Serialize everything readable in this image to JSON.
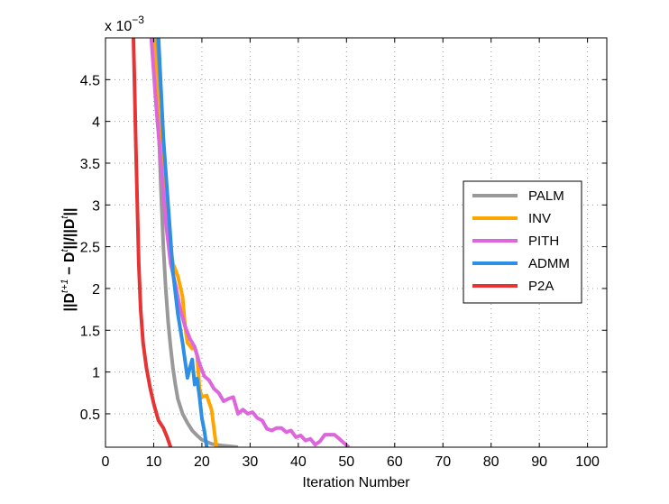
{
  "chart_data": {
    "type": "line",
    "xlabel": "Iteration Number",
    "ylabel_parts": [
      "||D",
      "t+1",
      " − D",
      "t",
      "||/||D",
      "t",
      "||"
    ],
    "exponent_label": "x 10",
    "exponent_power": "−3",
    "xlim": [
      0,
      104
    ],
    "ylim": [
      0.1,
      5.0
    ],
    "xticks": [
      "0",
      "10",
      "20",
      "30",
      "40",
      "50",
      "60",
      "70",
      "80",
      "90",
      "100"
    ],
    "xtick_values": [
      0,
      10,
      20,
      30,
      40,
      50,
      60,
      70,
      80,
      90,
      100
    ],
    "yticks": [
      "0.5",
      "1",
      "1.5",
      "2",
      "2.5",
      "3",
      "3.5",
      "4",
      "4.5"
    ],
    "ytick_values": [
      0.5,
      1,
      1.5,
      2,
      2.5,
      3,
      3.5,
      4,
      4.5
    ],
    "grid": true,
    "legend_position": "right",
    "series": [
      {
        "name": "PALM",
        "color": "#999999",
        "points": [
          [
            10.5,
            5.0
          ],
          [
            11,
            4.0
          ],
          [
            11.5,
            3.2
          ],
          [
            12,
            2.5
          ],
          [
            12.5,
            2.0
          ],
          [
            13,
            1.6
          ],
          [
            13.5,
            1.3
          ],
          [
            14,
            1.05
          ],
          [
            14.5,
            0.85
          ],
          [
            15,
            0.68
          ],
          [
            16,
            0.5
          ],
          [
            17,
            0.39
          ],
          [
            18,
            0.3
          ],
          [
            19,
            0.24
          ],
          [
            20,
            0.19
          ],
          [
            22,
            0.14
          ],
          [
            24,
            0.12
          ],
          [
            26,
            0.11
          ],
          [
            27.5,
            0.1
          ]
        ]
      },
      {
        "name": "INV",
        "color": "#FFA500",
        "points": [
          [
            10,
            5.0
          ],
          [
            11,
            4.1
          ],
          [
            12,
            3.4
          ],
          [
            13,
            2.7
          ],
          [
            14,
            2.3
          ],
          [
            15,
            2.15
          ],
          [
            16,
            1.9
          ],
          [
            16.5,
            1.55
          ],
          [
            17,
            1.35
          ],
          [
            18,
            1.28
          ],
          [
            18.5,
            1.3
          ],
          [
            19,
            1.2
          ],
          [
            19.5,
            0.8
          ],
          [
            20,
            0.7
          ],
          [
            21,
            0.72
          ],
          [
            22,
            0.55
          ],
          [
            23,
            0.1
          ]
        ]
      },
      {
        "name": "PITH",
        "color": "#DD66DD",
        "points": [
          [
            9.5,
            5.0
          ],
          [
            10.5,
            4.2
          ],
          [
            11.5,
            3.5
          ],
          [
            12.5,
            2.8
          ],
          [
            13.5,
            2.3
          ],
          [
            14.5,
            2.05
          ],
          [
            15.5,
            1.75
          ],
          [
            16.5,
            1.55
          ],
          [
            17.5,
            1.4
          ],
          [
            18.5,
            1.3
          ],
          [
            19.5,
            1.1
          ],
          [
            20.5,
            0.95
          ],
          [
            21.5,
            0.9
          ],
          [
            22.5,
            0.8
          ],
          [
            23.5,
            0.75
          ],
          [
            24.5,
            0.65
          ],
          [
            25.5,
            0.68
          ],
          [
            26.5,
            0.7
          ],
          [
            27.5,
            0.5
          ],
          [
            28.5,
            0.55
          ],
          [
            29.5,
            0.5
          ],
          [
            30.5,
            0.52
          ],
          [
            31.5,
            0.45
          ],
          [
            32.5,
            0.42
          ],
          [
            33.5,
            0.32
          ],
          [
            34.5,
            0.3
          ],
          [
            35.5,
            0.33
          ],
          [
            36.5,
            0.33
          ],
          [
            37.5,
            0.28
          ],
          [
            38.5,
            0.3
          ],
          [
            39.5,
            0.22
          ],
          [
            40.5,
            0.24
          ],
          [
            41.5,
            0.18
          ],
          [
            42.5,
            0.2
          ],
          [
            43.5,
            0.13
          ],
          [
            44.5,
            0.17
          ],
          [
            45.5,
            0.25
          ],
          [
            46.5,
            0.25
          ],
          [
            47.5,
            0.25
          ],
          [
            48.5,
            0.2
          ],
          [
            49.5,
            0.15
          ],
          [
            50.5,
            0.1
          ]
        ]
      },
      {
        "name": "ADMM",
        "color": "#2E8FE6",
        "points": [
          [
            11,
            5.0
          ],
          [
            12,
            3.8
          ],
          [
            13,
            3.0
          ],
          [
            14,
            2.2
          ],
          [
            15,
            1.7
          ],
          [
            16,
            1.35
          ],
          [
            17,
            0.93
          ],
          [
            17.5,
            1.05
          ],
          [
            18,
            1.15
          ],
          [
            18.5,
            0.85
          ],
          [
            19,
            0.92
          ],
          [
            19.5,
            0.7
          ],
          [
            20,
            0.45
          ],
          [
            20.5,
            0.3
          ],
          [
            21,
            0.1
          ]
        ]
      },
      {
        "name": "P2A",
        "color": "#E63333",
        "points": [
          [
            5.8,
            5.0
          ],
          [
            6,
            4.5
          ],
          [
            6.3,
            3.7
          ],
          [
            6.6,
            3.0
          ],
          [
            6.9,
            2.3
          ],
          [
            7.3,
            1.75
          ],
          [
            7.8,
            1.35
          ],
          [
            8.5,
            1.05
          ],
          [
            9.3,
            0.8
          ],
          [
            10.1,
            0.6
          ],
          [
            11,
            0.42
          ],
          [
            12,
            0.33
          ],
          [
            12.8,
            0.22
          ],
          [
            13.5,
            0.1
          ]
        ]
      }
    ]
  }
}
